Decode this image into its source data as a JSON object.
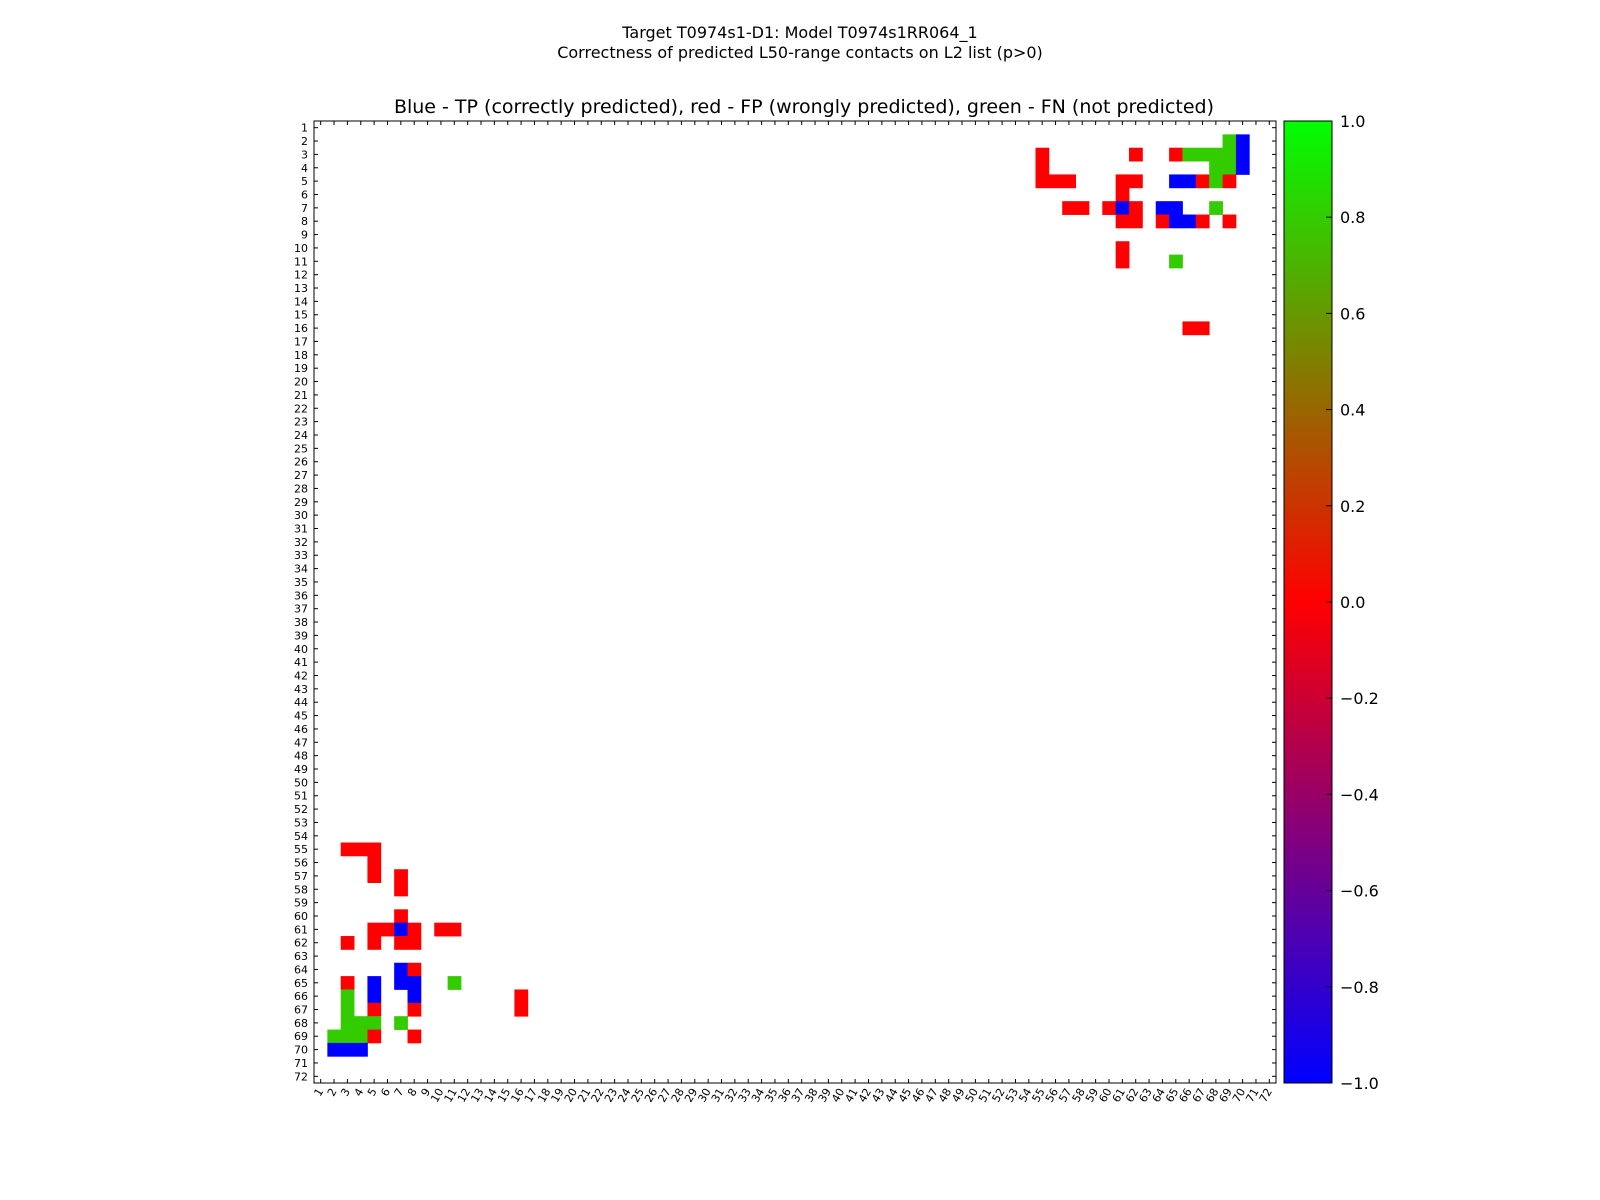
{
  "chart_data": {
    "type": "heatmap",
    "title": "Target T0974s1-D1: Model T0974s1RR064_1",
    "subtitle": "Correctness of predicted L50-range contacts on L2 list (p>0)",
    "plot_title": "Blue - TP (correctly predicted), red - FP (wrongly predicted), green - FN (not predicted)",
    "xlabel": "",
    "ylabel": "",
    "n": 72,
    "xlim": [
      1,
      72
    ],
    "ylim": [
      1,
      72
    ],
    "colorbar": {
      "range": [
        -1.0,
        1.0
      ],
      "ticks": [
        "1.0",
        "0.8",
        "0.6",
        "0.4",
        "0.2",
        "0.0",
        "−0.2",
        "−0.4",
        "−0.6",
        "−0.8",
        "−1.0"
      ],
      "stops": [
        {
          "value": -1.0,
          "color": "#0000ff"
        },
        {
          "value": 0.0,
          "color": "#ff0000"
        },
        {
          "value": 1.0,
          "color": "#00ff00"
        }
      ]
    },
    "category_colors": {
      "TP": "#0000ff",
      "FP": "#ff0000",
      "FN": "#33cc00"
    },
    "cells": [
      {
        "i": 2,
        "j": 69,
        "c": "FN"
      },
      {
        "i": 2,
        "j": 70,
        "c": "TP"
      },
      {
        "i": 3,
        "j": 62,
        "c": "FP"
      },
      {
        "i": 3,
        "j": 65,
        "c": "FP"
      },
      {
        "i": 3,
        "j": 66,
        "c": "FN"
      },
      {
        "i": 3,
        "j": 67,
        "c": "FN"
      },
      {
        "i": 3,
        "j": 68,
        "c": "FN"
      },
      {
        "i": 3,
        "j": 69,
        "c": "FN"
      },
      {
        "i": 3,
        "j": 70,
        "c": "TP"
      },
      {
        "i": 3,
        "j": 55,
        "c": "FP"
      },
      {
        "i": 4,
        "j": 55,
        "c": "FP"
      },
      {
        "i": 4,
        "j": 68,
        "c": "FN"
      },
      {
        "i": 4,
        "j": 69,
        "c": "FN"
      },
      {
        "i": 4,
        "j": 70,
        "c": "TP"
      },
      {
        "i": 5,
        "j": 55,
        "c": "FP"
      },
      {
        "i": 5,
        "j": 56,
        "c": "FP"
      },
      {
        "i": 5,
        "j": 57,
        "c": "FP"
      },
      {
        "i": 5,
        "j": 61,
        "c": "FP"
      },
      {
        "i": 5,
        "j": 62,
        "c": "FP"
      },
      {
        "i": 5,
        "j": 65,
        "c": "TP"
      },
      {
        "i": 5,
        "j": 66,
        "c": "TP"
      },
      {
        "i": 5,
        "j": 67,
        "c": "FP"
      },
      {
        "i": 5,
        "j": 68,
        "c": "FN"
      },
      {
        "i": 5,
        "j": 69,
        "c": "FP"
      },
      {
        "i": 6,
        "j": 61,
        "c": "FP"
      },
      {
        "i": 7,
        "j": 57,
        "c": "FP"
      },
      {
        "i": 7,
        "j": 58,
        "c": "FP"
      },
      {
        "i": 7,
        "j": 60,
        "c": "FP"
      },
      {
        "i": 7,
        "j": 61,
        "c": "TP"
      },
      {
        "i": 7,
        "j": 62,
        "c": "FP"
      },
      {
        "i": 7,
        "j": 64,
        "c": "TP"
      },
      {
        "i": 7,
        "j": 65,
        "c": "TP"
      },
      {
        "i": 7,
        "j": 68,
        "c": "FN"
      },
      {
        "i": 8,
        "j": 61,
        "c": "FP"
      },
      {
        "i": 8,
        "j": 62,
        "c": "FP"
      },
      {
        "i": 8,
        "j": 64,
        "c": "FP"
      },
      {
        "i": 8,
        "j": 65,
        "c": "TP"
      },
      {
        "i": 8,
        "j": 66,
        "c": "TP"
      },
      {
        "i": 8,
        "j": 67,
        "c": "FP"
      },
      {
        "i": 8,
        "j": 69,
        "c": "FP"
      },
      {
        "i": 10,
        "j": 61,
        "c": "FP"
      },
      {
        "i": 11,
        "j": 61,
        "c": "FP"
      },
      {
        "i": 11,
        "j": 65,
        "c": "FN"
      },
      {
        "i": 16,
        "j": 66,
        "c": "FP"
      },
      {
        "i": 16,
        "j": 67,
        "c": "FP"
      }
    ],
    "symmetric": true
  }
}
